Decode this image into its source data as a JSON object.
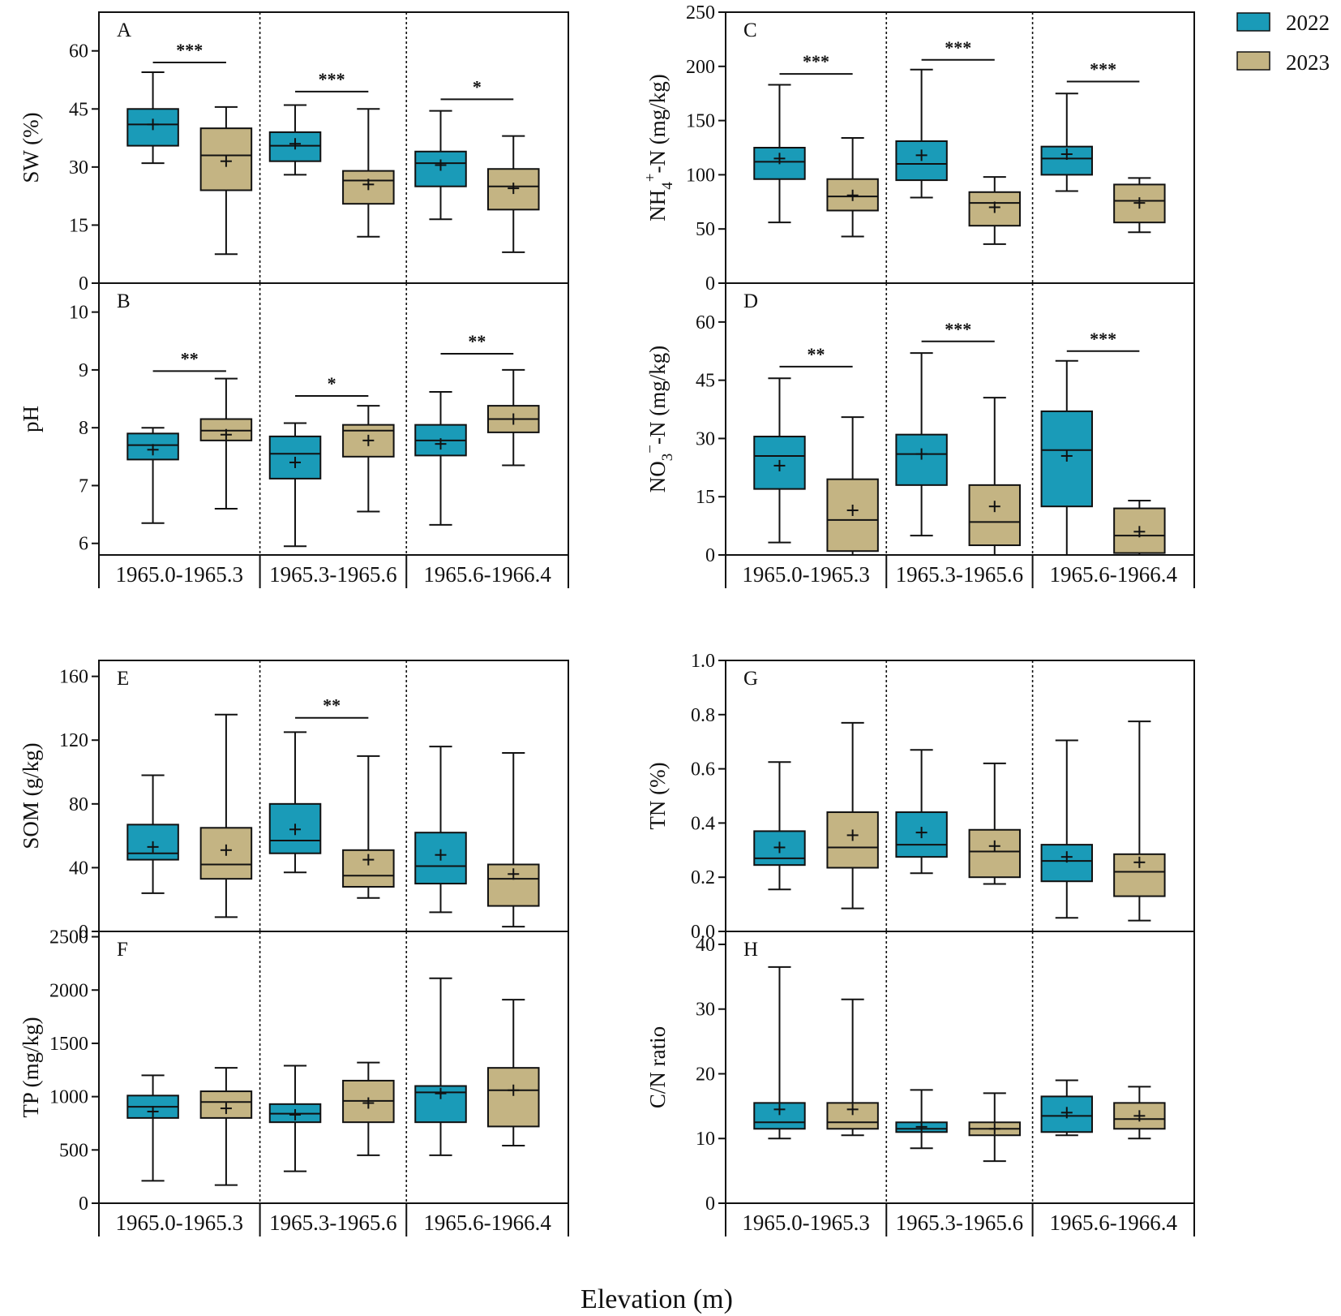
{
  "figure": {
    "x_title": "Elevation (m)",
    "legend": [
      {
        "label": "2022",
        "color": "#1a9bb8"
      },
      {
        "label": "2023",
        "color": "#c4b483"
      }
    ]
  },
  "chart_data": [
    {
      "type": "boxplot",
      "panel": "A",
      "ylabel": "SW (%)",
      "ylim": [
        0,
        70
      ],
      "yticks": [
        0,
        15,
        30,
        45,
        60
      ],
      "show_categories": false,
      "categories": [
        "1965.0-1965.3",
        "1965.3-1965.6",
        "1965.6-1966.4"
      ],
      "series": [
        {
          "name": "2022",
          "boxes": [
            {
              "min": 31,
              "q1": 35.5,
              "median": 41,
              "q3": 45,
              "max": 54.5,
              "mean": 41
            },
            {
              "min": 28,
              "q1": 31.5,
              "median": 35.5,
              "q3": 39,
              "max": 46,
              "mean": 36
            },
            {
              "min": 16.5,
              "q1": 25,
              "median": 31,
              "q3": 34,
              "max": 44.5,
              "mean": 30.5
            }
          ]
        },
        {
          "name": "2023",
          "boxes": [
            {
              "min": 7.5,
              "q1": 24,
              "median": 33,
              "q3": 40,
              "max": 45.5,
              "mean": 31.5
            },
            {
              "min": 12,
              "q1": 20.5,
              "median": 26.5,
              "q3": 29,
              "max": 45,
              "mean": 25.5
            },
            {
              "min": 8,
              "q1": 19,
              "median": 25,
              "q3": 29.5,
              "max": 38,
              "mean": 24.5
            }
          ]
        }
      ],
      "significance": [
        {
          "group": 0,
          "label": "***",
          "y": 57
        },
        {
          "group": 1,
          "label": "***",
          "y": 49.5
        },
        {
          "group": 2,
          "label": "*",
          "y": 47.5
        }
      ]
    },
    {
      "type": "boxplot",
      "panel": "B",
      "ylabel": "pH",
      "ylim": [
        5.8,
        10.5
      ],
      "yticks": [
        6,
        7,
        8,
        9,
        10
      ],
      "show_categories": true,
      "categories": [
        "1965.0-1965.3",
        "1965.3-1965.6",
        "1965.6-1966.4"
      ],
      "series": [
        {
          "name": "2022",
          "boxes": [
            {
              "min": 6.35,
              "q1": 7.45,
              "median": 7.7,
              "q3": 7.9,
              "max": 8.0,
              "mean": 7.62
            },
            {
              "min": 5.95,
              "q1": 7.12,
              "median": 7.55,
              "q3": 7.85,
              "max": 8.08,
              "mean": 7.4
            },
            {
              "min": 6.32,
              "q1": 7.52,
              "median": 7.78,
              "q3": 8.05,
              "max": 8.62,
              "mean": 7.72
            }
          ]
        },
        {
          "name": "2023",
          "boxes": [
            {
              "min": 6.6,
              "q1": 7.78,
              "median": 7.95,
              "q3": 8.15,
              "max": 8.85,
              "mean": 7.88
            },
            {
              "min": 6.55,
              "q1": 7.5,
              "median": 7.95,
              "q3": 8.05,
              "max": 8.38,
              "mean": 7.78
            },
            {
              "min": 7.35,
              "q1": 7.92,
              "median": 8.15,
              "q3": 8.38,
              "max": 9.0,
              "mean": 8.15
            }
          ]
        }
      ],
      "significance": [
        {
          "group": 0,
          "label": "**",
          "y": 8.98
        },
        {
          "group": 1,
          "label": "*",
          "y": 8.55
        },
        {
          "group": 2,
          "label": "**",
          "y": 9.28
        }
      ]
    },
    {
      "type": "boxplot",
      "panel": "C",
      "ylabel": "NH4+-N (mg/kg)",
      "ylim": [
        0,
        250
      ],
      "yticks": [
        0,
        50,
        100,
        150,
        200,
        250
      ],
      "show_categories": false,
      "categories": [
        "1965.0-1965.3",
        "1965.3-1965.6",
        "1965.6-1966.4"
      ],
      "series": [
        {
          "name": "2022",
          "boxes": [
            {
              "min": 56,
              "q1": 96,
              "median": 112,
              "q3": 125,
              "max": 183,
              "mean": 115
            },
            {
              "min": 79,
              "q1": 95,
              "median": 110,
              "q3": 131,
              "max": 197,
              "mean": 118
            },
            {
              "min": 85,
              "q1": 100,
              "median": 115,
              "q3": 126,
              "max": 175,
              "mean": 119
            }
          ]
        },
        {
          "name": "2023",
          "boxes": [
            {
              "min": 43,
              "q1": 67,
              "median": 80,
              "q3": 96,
              "max": 134,
              "mean": 81
            },
            {
              "min": 36,
              "q1": 53,
              "median": 74,
              "q3": 84,
              "max": 98,
              "mean": 70
            },
            {
              "min": 47,
              "q1": 56,
              "median": 76,
              "q3": 91,
              "max": 97,
              "mean": 74
            }
          ]
        }
      ],
      "significance": [
        {
          "group": 0,
          "label": "***",
          "y": 193
        },
        {
          "group": 1,
          "label": "***",
          "y": 206
        },
        {
          "group": 2,
          "label": "***",
          "y": 186
        }
      ]
    },
    {
      "type": "boxplot",
      "panel": "D",
      "ylabel": "NO3--N (mg/kg)",
      "ylim": [
        0,
        70
      ],
      "yticks": [
        0,
        15,
        30,
        45,
        60
      ],
      "show_categories": true,
      "categories": [
        "1965.0-1965.3",
        "1965.3-1965.6",
        "1965.6-1966.4"
      ],
      "series": [
        {
          "name": "2022",
          "boxes": [
            {
              "min": 3.2,
              "q1": 17,
              "median": 25.5,
              "q3": 30.5,
              "max": 45.5,
              "mean": 23
            },
            {
              "min": 5,
              "q1": 18,
              "median": 26,
              "q3": 31,
              "max": 52,
              "mean": 26
            },
            {
              "min": 0,
              "q1": 12.5,
              "median": 27,
              "q3": 37,
              "max": 50,
              "mean": 25.5
            }
          ]
        },
        {
          "name": "2023",
          "boxes": [
            {
              "min": 0,
              "q1": 1,
              "median": 9,
              "q3": 19.5,
              "max": 35.5,
              "mean": 11.5
            },
            {
              "min": 0,
              "q1": 2.5,
              "median": 8.5,
              "q3": 18,
              "max": 40.5,
              "mean": 12.5
            },
            {
              "min": 0,
              "q1": 0.5,
              "median": 5,
              "q3": 12,
              "max": 14,
              "mean": 6
            }
          ]
        }
      ],
      "significance": [
        {
          "group": 0,
          "label": "**",
          "y": 48.5
        },
        {
          "group": 1,
          "label": "***",
          "y": 55
        },
        {
          "group": 2,
          "label": "***",
          "y": 52.5
        }
      ]
    },
    {
      "type": "boxplot",
      "panel": "E",
      "ylabel": "SOM (g/kg)",
      "ylim": [
        0,
        170
      ],
      "yticks": [
        0,
        40,
        80,
        120,
        160
      ],
      "show_categories": false,
      "categories": [
        "1965.0-1965.3",
        "1965.3-1965.6",
        "1965.6-1966.4"
      ],
      "series": [
        {
          "name": "2022",
          "boxes": [
            {
              "min": 24,
              "q1": 45,
              "median": 49,
              "q3": 67,
              "max": 98,
              "mean": 53
            },
            {
              "min": 37,
              "q1": 49,
              "median": 57,
              "q3": 80,
              "max": 125,
              "mean": 64
            },
            {
              "min": 12,
              "q1": 30,
              "median": 41,
              "q3": 62,
              "max": 116,
              "mean": 48
            }
          ]
        },
        {
          "name": "2023",
          "boxes": [
            {
              "min": 9,
              "q1": 33,
              "median": 42,
              "q3": 65,
              "max": 136,
              "mean": 51
            },
            {
              "min": 21,
              "q1": 28,
              "median": 35,
              "q3": 51,
              "max": 110,
              "mean": 45
            },
            {
              "min": 3,
              "q1": 16,
              "median": 33,
              "q3": 42,
              "max": 112,
              "mean": 36
            }
          ]
        }
      ],
      "significance": [
        {
          "group": 1,
          "label": "**",
          "y": 134
        }
      ]
    },
    {
      "type": "boxplot",
      "panel": "F",
      "ylabel": "TP (mg/kg)",
      "ylim": [
        0,
        2550
      ],
      "yticks": [
        0,
        500,
        1000,
        1500,
        2000,
        2500
      ],
      "show_categories": true,
      "categories": [
        "1965.0-1965.3",
        "1965.3-1965.6",
        "1965.6-1966.4"
      ],
      "series": [
        {
          "name": "2022",
          "boxes": [
            {
              "min": 210,
              "q1": 800,
              "median": 905,
              "q3": 1010,
              "max": 1200,
              "mean": 860
            },
            {
              "min": 300,
              "q1": 760,
              "median": 840,
              "q3": 930,
              "max": 1290,
              "mean": 830
            },
            {
              "min": 450,
              "q1": 760,
              "median": 1040,
              "q3": 1100,
              "max": 2110,
              "mean": 1030
            }
          ]
        },
        {
          "name": "2023",
          "boxes": [
            {
              "min": 170,
              "q1": 800,
              "median": 950,
              "q3": 1050,
              "max": 1270,
              "mean": 890
            },
            {
              "min": 450,
              "q1": 760,
              "median": 960,
              "q3": 1150,
              "max": 1320,
              "mean": 940
            },
            {
              "min": 540,
              "q1": 720,
              "median": 1060,
              "q3": 1270,
              "max": 1910,
              "mean": 1060
            }
          ]
        }
      ],
      "significance": []
    },
    {
      "type": "boxplot",
      "panel": "G",
      "ylabel": "TN (%)",
      "ylim": [
        0,
        1.0
      ],
      "yticks": [
        0.0,
        0.2,
        0.4,
        0.6,
        0.8,
        1.0
      ],
      "show_categories": false,
      "categories": [
        "1965.0-1965.3",
        "1965.3-1965.6",
        "1965.6-1966.4"
      ],
      "series": [
        {
          "name": "2022",
          "boxes": [
            {
              "min": 0.155,
              "q1": 0.245,
              "median": 0.27,
              "q3": 0.37,
              "max": 0.625,
              "mean": 0.31
            },
            {
              "min": 0.215,
              "q1": 0.275,
              "median": 0.32,
              "q3": 0.44,
              "max": 0.67,
              "mean": 0.365
            },
            {
              "min": 0.05,
              "q1": 0.185,
              "median": 0.26,
              "q3": 0.32,
              "max": 0.705,
              "mean": 0.275
            }
          ]
        },
        {
          "name": "2023",
          "boxes": [
            {
              "min": 0.085,
              "q1": 0.235,
              "median": 0.31,
              "q3": 0.44,
              "max": 0.77,
              "mean": 0.355
            },
            {
              "min": 0.175,
              "q1": 0.2,
              "median": 0.295,
              "q3": 0.375,
              "max": 0.62,
              "mean": 0.315
            },
            {
              "min": 0.04,
              "q1": 0.13,
              "median": 0.22,
              "q3": 0.285,
              "max": 0.775,
              "mean": 0.255
            }
          ]
        }
      ],
      "significance": []
    },
    {
      "type": "boxplot",
      "panel": "H",
      "ylabel": "C/N ratio",
      "ylim": [
        0,
        42
      ],
      "yticks": [
        0,
        10,
        20,
        30,
        40
      ],
      "show_categories": true,
      "categories": [
        "1965.0-1965.3",
        "1965.3-1965.6",
        "1965.6-1966.4"
      ],
      "series": [
        {
          "name": "2022",
          "boxes": [
            {
              "min": 10,
              "q1": 11.5,
              "median": 12.5,
              "q3": 15.5,
              "max": 36.5,
              "mean": 14.5
            },
            {
              "min": 8.5,
              "q1": 11,
              "median": 11.5,
              "q3": 12.5,
              "max": 17.5,
              "mean": 11.8
            },
            {
              "min": 10.5,
              "q1": 11,
              "median": 13.5,
              "q3": 16.5,
              "max": 19,
              "mean": 14
            }
          ]
        },
        {
          "name": "2023",
          "boxes": [
            {
              "min": 10.5,
              "q1": 11.5,
              "median": 12.5,
              "q3": 15.5,
              "max": 31.5,
              "mean": 14.5
            },
            {
              "min": 6.5,
              "q1": 10.5,
              "median": 11.5,
              "q3": 12.5,
              "max": 17,
              "mean": 11.5
            },
            {
              "min": 10,
              "q1": 11.5,
              "median": 13,
              "q3": 15.5,
              "max": 18,
              "mean": 13.5
            }
          ]
        }
      ],
      "significance": []
    }
  ]
}
